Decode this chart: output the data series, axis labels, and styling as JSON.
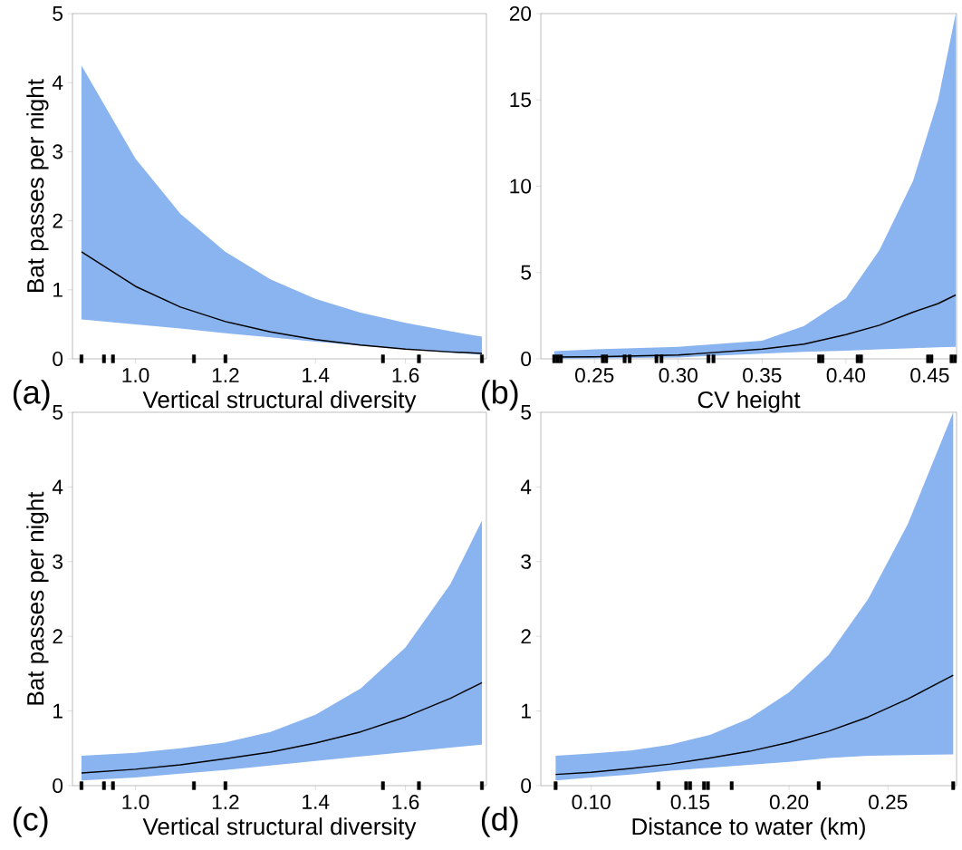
{
  "chart_data": [
    {
      "type": "line",
      "xlabel": "Vertical structural diversity",
      "ylabel": "Bat passes per night",
      "annotations": [
        "(a)"
      ],
      "xlim": [
        0.86,
        1.78
      ],
      "ylim": [
        0,
        5
      ],
      "xticks": [
        {
          "value": 1.0,
          "label": "1.0"
        },
        1.2,
        1.4,
        1.6
      ],
      "yticks": [
        0,
        1,
        2,
        3,
        4,
        5
      ],
      "series": [
        {
          "color": "#000000",
          "x": [
            0.88,
            1.0,
            1.1,
            1.2,
            1.3,
            1.4,
            1.5,
            1.6,
            1.7,
            1.77
          ],
          "values": [
            1.55,
            1.05,
            0.75,
            0.54,
            0.39,
            0.28,
            0.2,
            0.14,
            0.1,
            0.08
          ],
          "lower": [
            0.57,
            0.5,
            0.44,
            0.37,
            0.31,
            0.25,
            0.19,
            0.14,
            0.09,
            0.06
          ],
          "upper": [
            4.25,
            2.9,
            2.1,
            1.55,
            1.15,
            0.87,
            0.67,
            0.52,
            0.4,
            0.32
          ]
        },
        {
          "type": "scatter",
          "color": "#000000",
          "x": [
            0.88,
            0.93,
            0.95,
            1.13,
            1.2,
            1.55,
            1.63,
            1.77
          ],
          "values": [
            0,
            0,
            0,
            0,
            0,
            0,
            0,
            0
          ]
        }
      ]
    },
    {
      "type": "line",
      "xlabel": "CV height",
      "annotations": [
        "(b)"
      ],
      "xlim": [
        0.218,
        0.466
      ],
      "ylim": [
        0,
        20
      ],
      "xticks": [
        0.25,
        {
          "value": 0.3,
          "label": "0.30"
        },
        0.35,
        {
          "value": 0.4,
          "label": "0.40"
        },
        0.45
      ],
      "yticks": [
        0,
        5,
        10,
        15,
        20
      ],
      "series": [
        {
          "color": "#000000",
          "x": [
            0.226,
            0.25,
            0.3,
            0.35,
            0.375,
            0.4,
            0.42,
            0.44,
            0.455,
            0.4655
          ],
          "values": [
            0.1,
            0.12,
            0.22,
            0.56,
            0.85,
            1.4,
            1.95,
            2.7,
            3.2,
            3.7
          ],
          "lower": [
            0.0,
            0.02,
            0.08,
            0.3,
            0.4,
            0.47,
            0.55,
            0.62,
            0.67,
            0.7
          ],
          "upper": [
            0.45,
            0.55,
            0.7,
            1.05,
            1.9,
            3.5,
            6.3,
            10.3,
            15,
            20
          ]
        },
        {
          "type": "scatter",
          "color": "#000000",
          "x": [
            0.226,
            0.228,
            0.23,
            0.255,
            0.257,
            0.268,
            0.271,
            0.287,
            0.29,
            0.318,
            0.321,
            0.384,
            0.386,
            0.407,
            0.409,
            0.449,
            0.451,
            0.463,
            0.465
          ],
          "values": [
            0,
            0,
            0,
            0,
            0,
            0,
            0,
            0,
            0,
            0,
            0,
            0,
            0,
            0,
            0,
            0,
            0,
            0,
            0
          ]
        }
      ]
    },
    {
      "type": "line",
      "xlabel": "Vertical structural diversity",
      "ylabel": "Bat passes per night",
      "annotations": [
        "(c)"
      ],
      "xlim": [
        0.86,
        1.78
      ],
      "ylim": [
        0,
        5
      ],
      "xticks": [
        {
          "value": 1.0,
          "label": "1.0"
        },
        1.2,
        1.4,
        1.6
      ],
      "yticks": [
        0,
        1,
        2,
        3,
        4,
        5
      ],
      "series": [
        {
          "color": "#000000",
          "x": [
            0.88,
            1.0,
            1.1,
            1.2,
            1.3,
            1.4,
            1.5,
            1.6,
            1.7,
            1.77
          ],
          "values": [
            0.17,
            0.22,
            0.28,
            0.36,
            0.45,
            0.57,
            0.72,
            0.92,
            1.17,
            1.38
          ],
          "lower": [
            0.07,
            0.11,
            0.16,
            0.21,
            0.27,
            0.33,
            0.39,
            0.45,
            0.51,
            0.55
          ],
          "upper": [
            0.4,
            0.44,
            0.5,
            0.58,
            0.72,
            0.95,
            1.3,
            1.85,
            2.7,
            3.55
          ]
        },
        {
          "type": "scatter",
          "color": "#000000",
          "x": [
            0.88,
            0.93,
            0.95,
            1.13,
            1.2,
            1.55,
            1.63,
            1.77
          ],
          "values": [
            0,
            0,
            0,
            0,
            0,
            0,
            0,
            0
          ]
        }
      ]
    },
    {
      "type": "line",
      "xlabel": "Distance to water (km)",
      "annotations": [
        "(d)"
      ],
      "xlim": [
        0.0745,
        0.2847
      ],
      "ylim": [
        0,
        5
      ],
      "xticks": [
        {
          "value": 0.1,
          "label": "0.10"
        },
        0.15,
        {
          "value": 0.2,
          "label": "0.20"
        },
        0.25
      ],
      "yticks": [
        0,
        1,
        2,
        3,
        4,
        5
      ],
      "series": [
        {
          "color": "#000000",
          "x": [
            0.082,
            0.1,
            0.12,
            0.14,
            0.16,
            0.18,
            0.2,
            0.22,
            0.24,
            0.26,
            0.283
          ],
          "values": [
            0.15,
            0.18,
            0.23,
            0.29,
            0.37,
            0.46,
            0.58,
            0.73,
            0.92,
            1.16,
            1.48
          ],
          "lower": [
            0.07,
            0.11,
            0.15,
            0.2,
            0.24,
            0.28,
            0.32,
            0.37,
            0.4,
            0.41,
            0.42
          ],
          "upper": [
            0.4,
            0.43,
            0.47,
            0.55,
            0.68,
            0.9,
            1.25,
            1.75,
            2.5,
            3.5,
            5.0
          ]
        },
        {
          "type": "scatter",
          "color": "#000000",
          "x": [
            0.082,
            0.134,
            0.148,
            0.15,
            0.157,
            0.159,
            0.171,
            0.215,
            0.283
          ],
          "values": [
            0,
            0,
            0,
            0,
            0,
            0,
            0,
            0,
            0
          ]
        }
      ]
    }
  ]
}
